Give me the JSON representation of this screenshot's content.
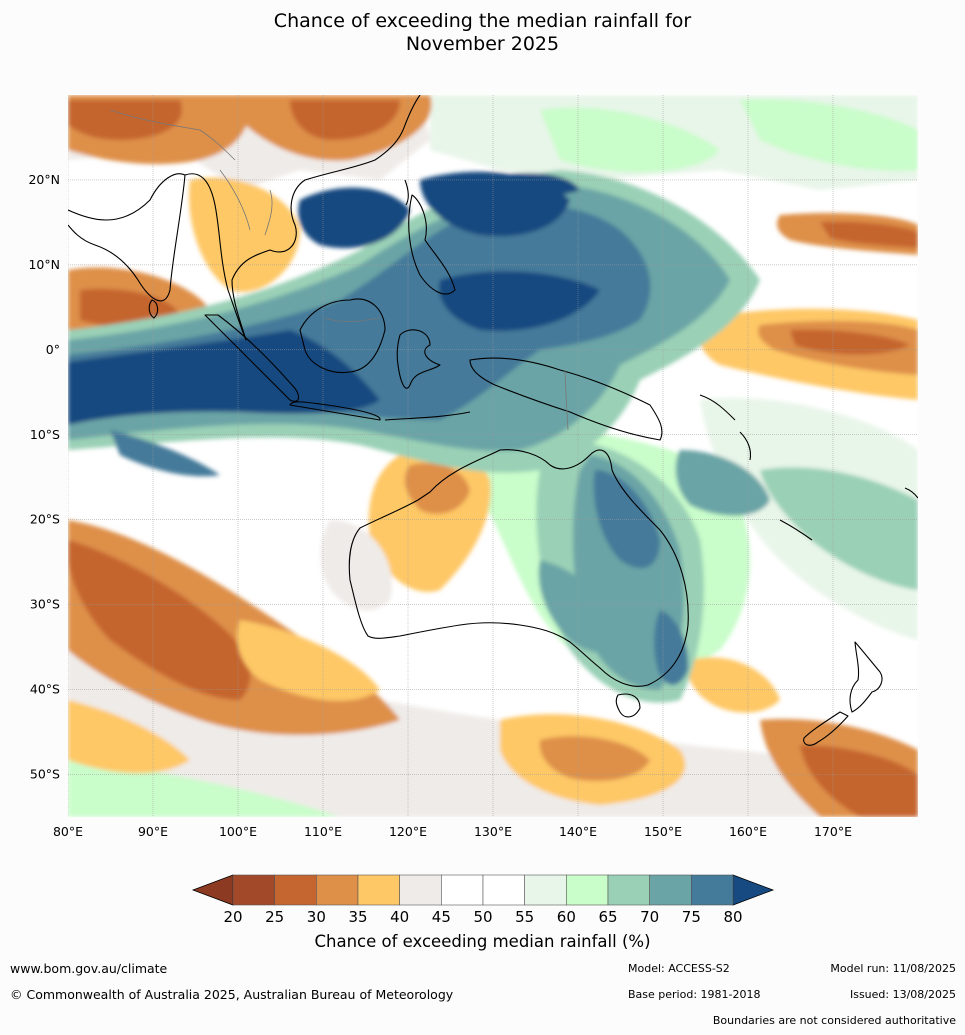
{
  "title": {
    "line1": "Chance of exceeding the median rainfall for",
    "line2": "November 2025"
  },
  "map": {
    "lat_labels": [
      "20°N",
      "10°N",
      "0°",
      "10°S",
      "20°S",
      "30°S",
      "40°S",
      "50°S"
    ],
    "lon_labels": [
      "80°E",
      "90°E",
      "100°E",
      "110°E",
      "120°E",
      "130°E",
      "140°E",
      "150°E",
      "160°E",
      "170°E"
    ],
    "lon_range": [
      80,
      180
    ],
    "lat_range": [
      -55,
      30
    ]
  },
  "colorbar": {
    "ticks": [
      "20",
      "25",
      "30",
      "35",
      "40",
      "45",
      "50",
      "55",
      "60",
      "65",
      "70",
      "75",
      "80"
    ],
    "colors": [
      "#a2492a",
      "#c5652f",
      "#de9049",
      "#fec866",
      "#efebe8",
      "#ffffff",
      "#ffffff",
      "#e8f5e9",
      "#c9fdca",
      "#9ad0b6",
      "#6ba4a6",
      "#447a9a"
    ],
    "below_color": "#8d3a22",
    "above_color": "#164a80",
    "label": "Chance of exceeding median rainfall (%)"
  },
  "footer": {
    "url": "www.bom.gov.au/climate",
    "copyright": "© Commonwealth of Australia 2025, Australian Bureau of Meteorology",
    "model": "Model: ACCESS-S2",
    "base_period": "Base period: 1981-2018",
    "model_run": "Model run: 11/08/2025",
    "issued": "Issued: 13/08/2025",
    "disclaimer": "Boundaries are not considered authoritative"
  }
}
